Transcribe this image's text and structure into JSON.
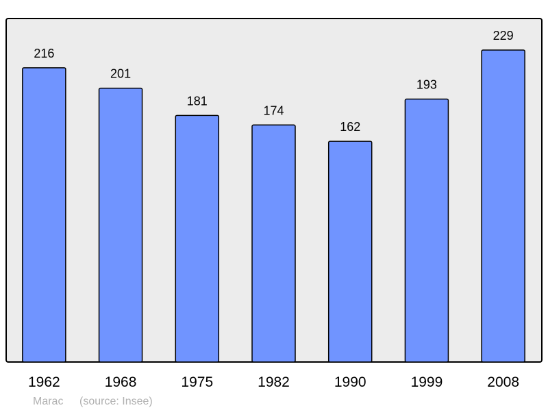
{
  "chart_data": {
    "type": "bar",
    "categories": [
      "1962",
      "1968",
      "1975",
      "1982",
      "1990",
      "1999",
      "2008"
    ],
    "values": [
      216,
      201,
      181,
      174,
      162,
      193,
      229
    ],
    "ylim": [
      0,
      229
    ],
    "grid": false,
    "bar_color": "#7094ff",
    "background_color": "#ececec",
    "data_labels": true
  },
  "caption": {
    "place": "Marac",
    "source": "(source: Insee)"
  }
}
